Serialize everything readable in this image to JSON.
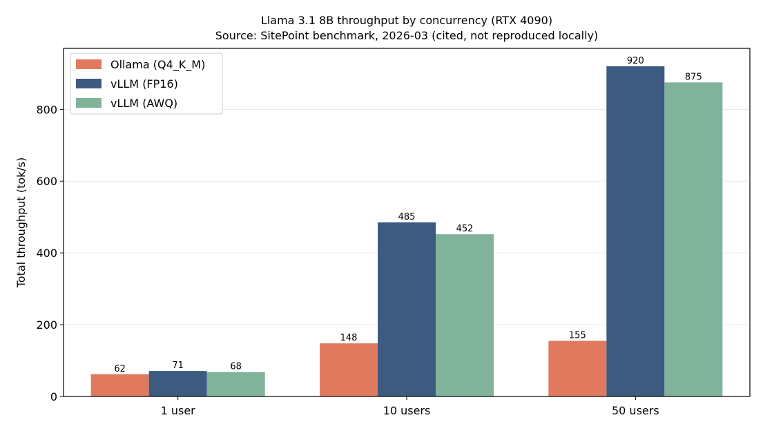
{
  "chart_data": {
    "type": "bar",
    "title": "Llama 3.1 8B throughput by concurrency (RTX 4090)",
    "subtitle": "Source: SitePoint benchmark, 2026-03 (cited, not reproduced locally)",
    "xlabel": "",
    "ylabel": "Total throughput (tok/s)",
    "categories": [
      "1 user",
      "10 users",
      "50 users"
    ],
    "ylim": [
      0,
      970
    ],
    "yticks": [
      0,
      200,
      400,
      600,
      800
    ],
    "grid": "horizontal",
    "legend_position": "top-left",
    "series": [
      {
        "name": "Ollama (Q4_K_M)",
        "color": "#e07a5f",
        "values": [
          62,
          148,
          155
        ]
      },
      {
        "name": "vLLM (FP16)",
        "color": "#3d5a80",
        "values": [
          71,
          485,
          920
        ]
      },
      {
        "name": "vLLM (AWQ)",
        "color": "#81b29a",
        "values": [
          68,
          452,
          875
        ]
      }
    ]
  }
}
